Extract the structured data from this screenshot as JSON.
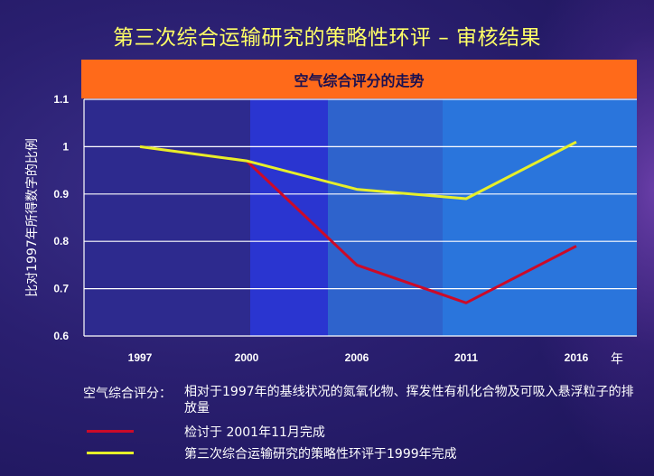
{
  "slide_title": "第三次综合运输研究的策略性环评 – 审核结果",
  "chart_data": {
    "type": "line",
    "title": "空气综合评分的走势",
    "categories": [
      "1997",
      "2000",
      "2006",
      "2011",
      "2016"
    ],
    "xunit": "年",
    "ylabel": "比对1997年所得数字的比例",
    "ylim": [
      0.6,
      1.1
    ],
    "yticks": [
      "1.1",
      "1",
      "0.9",
      "0.8",
      "0.7",
      "0.6"
    ],
    "series": [
      {
        "name": "检讨于 2001年11月完成",
        "color": "#cc0a28",
        "values": [
          1.0,
          0.97,
          0.75,
          0.67,
          0.79
        ]
      },
      {
        "name": "第三次综合运输研究的策略性环评于1999年完成",
        "color": "#e6ef2a",
        "values": [
          1.0,
          0.97,
          0.91,
          0.89,
          1.01
        ]
      }
    ]
  },
  "footnote": {
    "label": "空气综合评分：",
    "text": "相对于1997年的基线状况的氮氧化物、挥发性有机化合物及可吸入悬浮粒子的排放量"
  },
  "colors": {
    "banner": "#ff6a1a",
    "title": "#ffff66",
    "bands": [
      "#2d2a8e",
      "#2a35d0",
      "#2e63cc",
      "#2a75dc"
    ]
  }
}
